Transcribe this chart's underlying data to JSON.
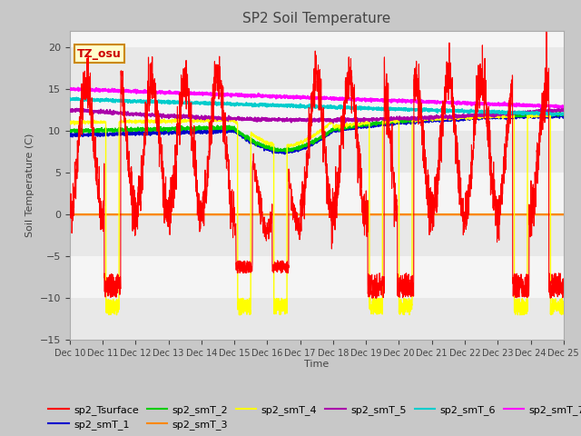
{
  "title": "SP2 Soil Temperature",
  "ylabel": "Soil Temperature (C)",
  "xlabel": "Time",
  "ylim": [
    -15,
    22
  ],
  "yticks": [
    -15,
    -10,
    -5,
    0,
    5,
    10,
    15,
    20
  ],
  "fig_bg": "#c8c8c8",
  "plot_bg": "#ffffff",
  "band_colors": [
    "#e8e8e8",
    "#f5f5f5"
  ],
  "tz_label": "TZ_osu",
  "tz_bg": "#ffffcc",
  "tz_border": "#cc8800",
  "tz_color": "#cc0000",
  "zero_line_color": "#cc8800",
  "colors": {
    "sp2_Tsurface": "#ff0000",
    "sp2_smT_1": "#0000cc",
    "sp2_smT_2": "#00cc00",
    "sp2_smT_3": "#ff8800",
    "sp2_smT_4": "#ffff00",
    "sp2_smT_5": "#aa00aa",
    "sp2_smT_6": "#00cccc",
    "sp2_smT_7": "#ff00ff"
  },
  "x_tick_labels": [
    "Dec 10",
    "Dec 11",
    "Dec 12",
    "Dec 13",
    "Dec 14",
    "Dec 15",
    "Dec 16",
    "Dec 17",
    "Dec 18",
    "Dec 19",
    "Dec 20",
    "Dec 21",
    "Dec 22",
    "Dec 23",
    "Dec 24",
    "Dec 25"
  ],
  "x_tick_positions": [
    0,
    1,
    2,
    3,
    4,
    5,
    6,
    7,
    8,
    9,
    10,
    11,
    12,
    13,
    14,
    15
  ]
}
